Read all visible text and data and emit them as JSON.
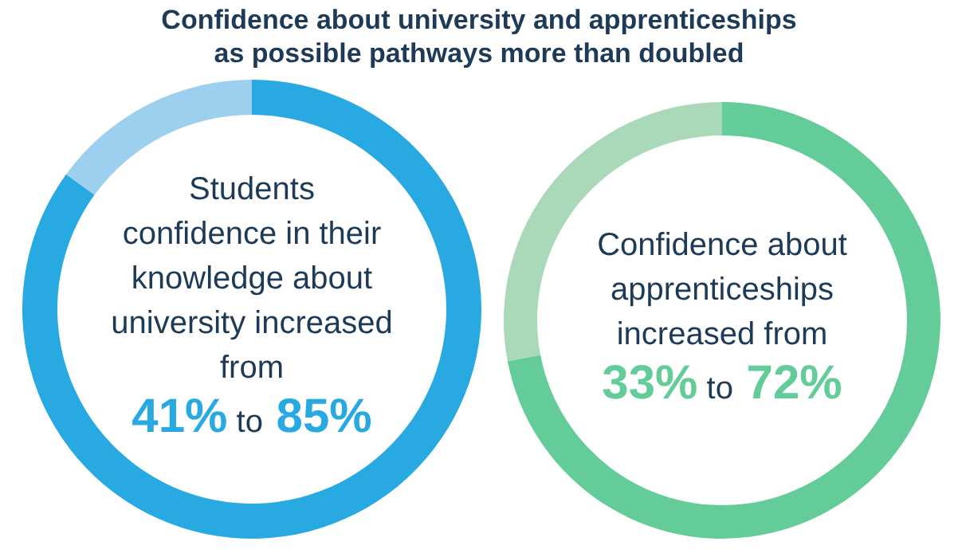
{
  "chart_data": [
    {
      "type": "donut",
      "title": "Confidence about university and apprenticeships as possible pathways more than doubled",
      "categories": [
        null,
        null
      ],
      "values": [
        85,
        15
      ],
      "colors": [
        "#29a9e1",
        "#9dcfee"
      ],
      "annotations": [
        "Students confidence in their knowledge about university increased from",
        "41% to 85%"
      ]
    },
    {
      "type": "donut",
      "categories": [
        null,
        null
      ],
      "values": [
        72,
        28
      ],
      "colors": [
        "#64cc98",
        "#a9d9b9"
      ],
      "annotations": [
        "Confidence about apprenticeships increased from",
        "33% to 72%"
      ]
    }
  ]
}
